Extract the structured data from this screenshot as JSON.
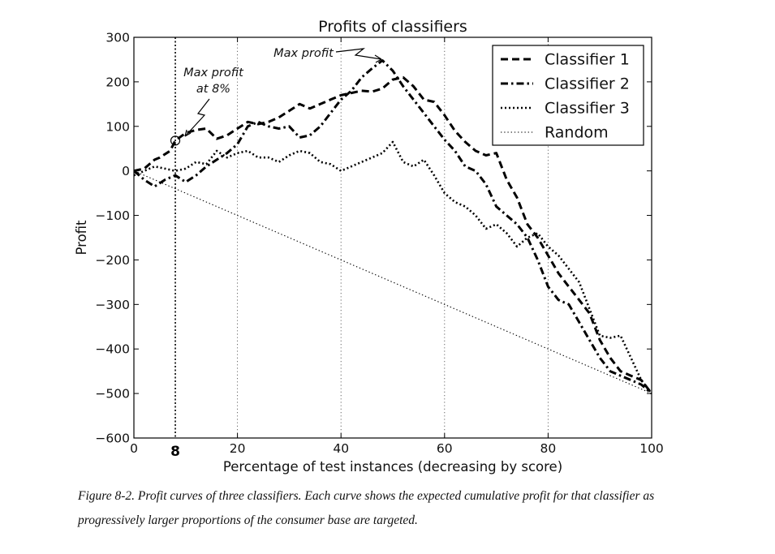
{
  "chart_data": {
    "type": "line",
    "title": "Profits of classifiers",
    "xlabel": "Percentage of test instances (decreasing by score)",
    "ylabel": "Profit",
    "xlim": [
      0,
      100
    ],
    "ylim": [
      -600,
      300
    ],
    "xticks": [
      0,
      20,
      40,
      60,
      80,
      100
    ],
    "yticks": [
      300,
      200,
      100,
      0,
      -100,
      -200,
      -300,
      -400,
      -500,
      -600
    ],
    "xtick_labels": [
      "0",
      "20",
      "40",
      "60",
      "80",
      "100"
    ],
    "ytick_labels": [
      "300",
      "200",
      "100",
      "0",
      "−100",
      "−200",
      "−300",
      "−400",
      "−500",
      "−600"
    ],
    "grid": "vertical dotted lines at x ticks",
    "legend_position": "top-right",
    "series": [
      {
        "name": "Classifier 1",
        "style": "dashed",
        "x": [
          0,
          2,
          4,
          5,
          7,
          8,
          10,
          12,
          14,
          16,
          18,
          20,
          22,
          24,
          26,
          28,
          30,
          32,
          34,
          36,
          38,
          40,
          42,
          44,
          46,
          48,
          50,
          52,
          54,
          56,
          58,
          60,
          62,
          64,
          66,
          68,
          70,
          72,
          74,
          76,
          78,
          80,
          82,
          84,
          86,
          88,
          90,
          92,
          94,
          96,
          98,
          100
        ],
        "values": [
          0,
          5,
          25,
          30,
          45,
          68,
          85,
          92,
          95,
          72,
          80,
          95,
          110,
          105,
          110,
          120,
          135,
          150,
          140,
          150,
          160,
          170,
          175,
          180,
          178,
          185,
          205,
          210,
          190,
          160,
          155,
          125,
          90,
          65,
          45,
          35,
          40,
          -20,
          -60,
          -120,
          -150,
          -190,
          -230,
          -260,
          -290,
          -320,
          -380,
          -420,
          -450,
          -460,
          -470,
          -500
        ]
      },
      {
        "name": "Classifier 2",
        "style": "dash-dot",
        "x": [
          0,
          2,
          4,
          6,
          8,
          10,
          12,
          14,
          16,
          18,
          20,
          22,
          24,
          26,
          28,
          30,
          32,
          34,
          36,
          38,
          40,
          42,
          44,
          46,
          48,
          50,
          52,
          54,
          56,
          58,
          60,
          62,
          64,
          66,
          68,
          70,
          72,
          74,
          76,
          78,
          80,
          82,
          84,
          86,
          88,
          90,
          92,
          94,
          96,
          98,
          100
        ],
        "values": [
          0,
          -20,
          -35,
          -20,
          -10,
          -25,
          -10,
          10,
          25,
          40,
          60,
          100,
          110,
          100,
          95,
          100,
          75,
          80,
          100,
          130,
          160,
          180,
          210,
          230,
          248,
          225,
          190,
          160,
          130,
          100,
          70,
          45,
          10,
          0,
          -30,
          -80,
          -100,
          -120,
          -150,
          -200,
          -260,
          -290,
          -300,
          -340,
          -380,
          -420,
          -450,
          -460,
          -470,
          -480,
          -500
        ]
      },
      {
        "name": "Classifier 3",
        "style": "dotted",
        "x": [
          0,
          2,
          4,
          6,
          8,
          10,
          12,
          14,
          16,
          18,
          20,
          22,
          24,
          26,
          28,
          30,
          32,
          34,
          36,
          38,
          40,
          42,
          44,
          46,
          48,
          50,
          52,
          54,
          56,
          58,
          60,
          62,
          64,
          66,
          68,
          70,
          72,
          74,
          76,
          78,
          80,
          82,
          84,
          86,
          88,
          90,
          92,
          94,
          96,
          98,
          100
        ],
        "values": [
          -10,
          0,
          10,
          5,
          0,
          5,
          20,
          15,
          45,
          30,
          40,
          45,
          30,
          30,
          20,
          35,
          45,
          40,
          20,
          15,
          0,
          10,
          20,
          30,
          40,
          65,
          20,
          10,
          25,
          -10,
          -50,
          -70,
          -80,
          -100,
          -130,
          -120,
          -140,
          -170,
          -150,
          -140,
          -170,
          -190,
          -220,
          -250,
          -310,
          -370,
          -375,
          -370,
          -420,
          -470,
          -500
        ]
      },
      {
        "name": "Random",
        "style": "fine-dotted",
        "x": [
          0,
          100
        ],
        "values": [
          0,
          -500
        ]
      }
    ],
    "annotations": [
      {
        "text": "Max profit\nat 8%",
        "x": 8,
        "y": 68,
        "text_lines": [
          "Max profit",
          "at 8%"
        ]
      },
      {
        "text": "Max profit",
        "x": 48,
        "y": 248
      }
    ],
    "marker_line": {
      "x": 8,
      "label": "8"
    }
  },
  "caption": {
    "lead": "Figure 8-2.",
    "rest": " Profit curves of three classifiers. Each curve shows the expected cumulative profit for that classifier as progressively larger proportions of the consumer base are targeted."
  }
}
